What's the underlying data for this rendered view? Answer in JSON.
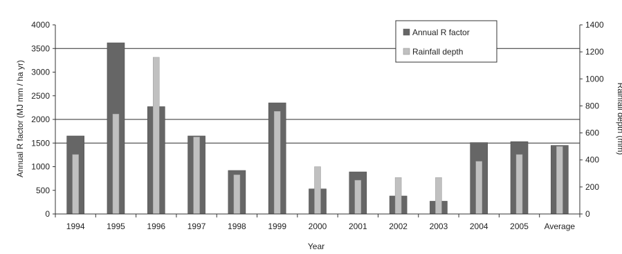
{
  "chart_data": {
    "type": "bar",
    "categories": [
      "1994",
      "1995",
      "1996",
      "1997",
      "1998",
      "1999",
      "2000",
      "2001",
      "2002",
      "2003",
      "2004",
      "2005",
      "Average"
    ],
    "series": [
      {
        "name": "Annual R factor",
        "axis": "left",
        "color": "#666666",
        "values": [
          1650,
          3620,
          2270,
          1650,
          920,
          2350,
          530,
          890,
          380,
          270,
          1510,
          1530,
          1450
        ]
      },
      {
        "name": "Rainfall depth",
        "axis": "right",
        "color": "#c0c0c0",
        "values": [
          440,
          740,
          1160,
          570,
          290,
          760,
          350,
          250,
          270,
          270,
          390,
          440,
          500
        ]
      }
    ],
    "xlabel": "Year",
    "ylabel": "Annual R factor (MJ mm / ha yr)",
    "y2label": "Rainfall depth (mm)",
    "ylim": [
      0,
      4000
    ],
    "y2lim": [
      0,
      1400
    ],
    "yticks": [
      "0",
      "500",
      "1000",
      "1500",
      "2000",
      "2500",
      "3000",
      "3500",
      "4000"
    ],
    "y2ticks": [
      "0",
      "200",
      "400",
      "600",
      "800",
      "1000",
      "1200",
      "1400"
    ],
    "grid": "major horizontal lines at 1500, 2000, 3500",
    "legend_position": "top-right"
  }
}
